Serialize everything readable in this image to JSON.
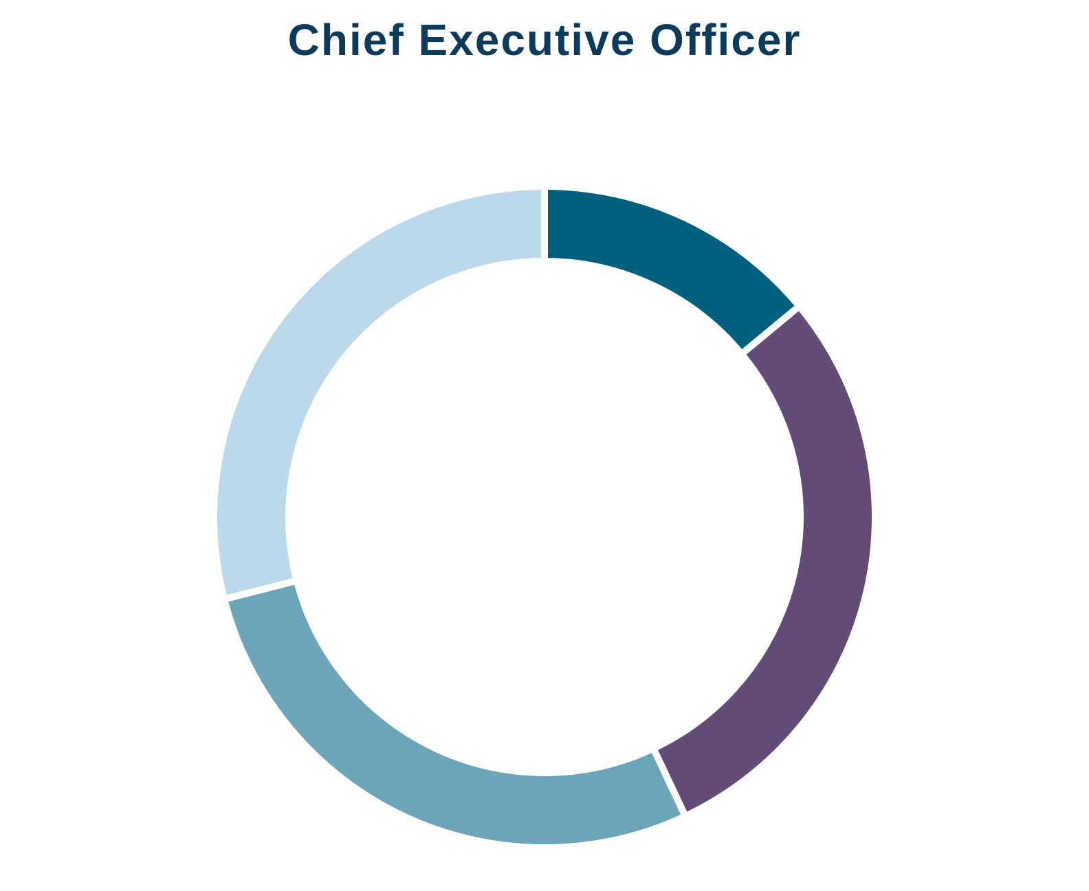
{
  "chart_data": {
    "type": "pie",
    "title": "Chief Executive Officer",
    "donut": true,
    "legend": "none",
    "slices": [
      {
        "value": 14,
        "color": "#00617F"
      },
      {
        "value": 29,
        "color": "#624C77"
      },
      {
        "value": 28,
        "color": "#6CA4BA"
      },
      {
        "value": 29,
        "color": "#BBD9EA"
      }
    ],
    "colors": {
      "title": "#0B3A5C",
      "separator": "#FFFFFF",
      "background": "#FFFFFF"
    }
  }
}
